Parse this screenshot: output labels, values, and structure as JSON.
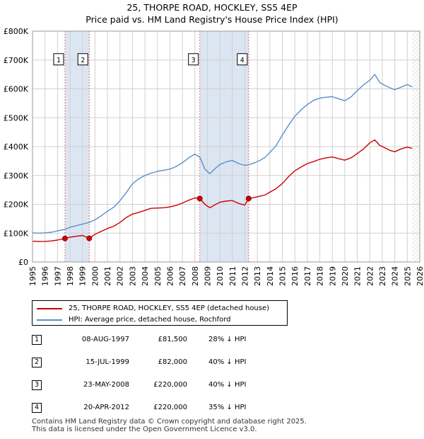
{
  "title_line1": "25, THORPE ROAD, HOCKLEY, SS5 4EP",
  "title_line2": "Price paid vs. HM Land Registry's House Price Index (HPI)",
  "colors": {
    "property": "#cc0000",
    "hpi": "#5b8fc9",
    "grid": "#d0d0d0",
    "shade": "#dce6f2",
    "sale_line": "#e07070"
  },
  "chart_data": {
    "type": "line",
    "xlabel": "",
    "ylabel": "",
    "xlim": [
      1995,
      2026
    ],
    "ylim": [
      0,
      800000
    ],
    "x_ticks": [
      1995,
      1996,
      1997,
      1998,
      1999,
      2000,
      2001,
      2002,
      2003,
      2004,
      2005,
      2006,
      2007,
      2008,
      2009,
      2010,
      2011,
      2012,
      2013,
      2014,
      2015,
      2016,
      2017,
      2018,
      2019,
      2020,
      2021,
      2022,
      2023,
      2024,
      2025,
      2026
    ],
    "y_ticks": [
      0,
      100000,
      200000,
      300000,
      400000,
      500000,
      600000,
      700000,
      800000
    ],
    "y_tick_labels": [
      "£0",
      "£100K",
      "£200K",
      "£300K",
      "£400K",
      "£500K",
      "£600K",
      "£700K",
      "£800K"
    ],
    "series": [
      {
        "name": "25, THORPE ROAD, HOCKLEY, SS5 4EP (detached house)",
        "color": "#cc0000",
        "x": [
          1995.0,
          1995.5,
          1996.0,
          1996.5,
          1997.0,
          1997.6,
          1998.0,
          1998.5,
          1999.0,
          1999.54,
          2000.0,
          2000.5,
          2001.0,
          2001.5,
          2002.0,
          2002.5,
          2003.0,
          2003.5,
          2004.0,
          2004.5,
          2005.0,
          2005.5,
          2006.0,
          2006.5,
          2007.0,
          2007.5,
          2008.0,
          2008.39,
          2008.8,
          2009.2,
          2009.6,
          2010.0,
          2010.5,
          2011.0,
          2011.5,
          2012.0,
          2012.3,
          2012.8,
          2013.2,
          2013.6,
          2014.0,
          2014.5,
          2015.0,
          2015.5,
          2016.0,
          2016.5,
          2017.0,
          2017.5,
          2018.0,
          2018.5,
          2019.0,
          2019.5,
          2020.0,
          2020.5,
          2021.0,
          2021.5,
          2022.0,
          2022.4,
          2022.8,
          2023.2,
          2023.6,
          2024.0,
          2024.5,
          2025.0,
          2025.4
        ],
        "values": [
          72000,
          71000,
          71500,
          73000,
          76000,
          81500,
          86000,
          89000,
          92000,
          82000,
          96000,
          106000,
          116000,
          124000,
          137000,
          154000,
          166000,
          172000,
          179000,
          186000,
          187000,
          188000,
          191000,
          196000,
          204000,
          214000,
          222000,
          220000,
          200000,
          188000,
          198000,
          207000,
          211000,
          213000,
          203000,
          197000,
          220000,
          224000,
          228000,
          232000,
          242000,
          254000,
          272000,
          296000,
          316000,
          329000,
          341000,
          348000,
          356000,
          361000,
          364000,
          358000,
          353000,
          361000,
          376000,
          392000,
          413000,
          423000,
          404000,
          396000,
          387000,
          382000,
          392000,
          398000,
          394000
        ]
      },
      {
        "name": "HPI: Average price, detached house, Rochford",
        "color": "#5b8fc9",
        "x": [
          1995.0,
          1995.5,
          1996.0,
          1996.5,
          1997.0,
          1997.6,
          1998.0,
          1998.5,
          1999.0,
          1999.5,
          2000.0,
          2000.5,
          2001.0,
          2001.5,
          2002.0,
          2002.5,
          2003.0,
          2003.5,
          2004.0,
          2004.5,
          2005.0,
          2005.5,
          2006.0,
          2006.5,
          2007.0,
          2007.5,
          2008.0,
          2008.4,
          2008.8,
          2009.2,
          2009.6,
          2010.0,
          2010.5,
          2011.0,
          2011.5,
          2012.0,
          2012.3,
          2012.8,
          2013.2,
          2013.6,
          2014.0,
          2014.5,
          2015.0,
          2015.5,
          2016.0,
          2016.5,
          2017.0,
          2017.5,
          2018.0,
          2018.5,
          2019.0,
          2019.5,
          2020.0,
          2020.5,
          2021.0,
          2021.5,
          2022.0,
          2022.4,
          2022.8,
          2023.2,
          2023.6,
          2024.0,
          2024.5,
          2025.0,
          2025.4
        ],
        "values": [
          101000,
          100000,
          101000,
          103000,
          108000,
          113000,
          120000,
          126000,
          131000,
          137000,
          146000,
          160000,
          176000,
          190000,
          212000,
          240000,
          271000,
          288000,
          300000,
          308000,
          314000,
          318000,
          322000,
          331000,
          344000,
          361000,
          374000,
          363000,
          322000,
          306000,
          323000,
          338000,
          347000,
          352000,
          341000,
          335000,
          337000,
          344000,
          352000,
          362000,
          380000,
          403000,
          440000,
          474000,
          505000,
          527000,
          546000,
          560000,
          568000,
          571000,
          573000,
          566000,
          559000,
          572000,
          594000,
          614000,
          630000,
          650000,
          622000,
          612000,
          604000,
          597000,
          606000,
          615000,
          607000
        ]
      }
    ],
    "sales": [
      {
        "label": "1",
        "x": 1997.6,
        "value": 81500
      },
      {
        "label": "2",
        "x": 1999.54,
        "value": 82000
      },
      {
        "label": "3",
        "x": 2008.39,
        "value": 220000
      },
      {
        "label": "4",
        "x": 2012.3,
        "value": 220000
      }
    ],
    "shaded_ranges": [
      [
        1997.6,
        1999.54
      ],
      [
        2008.39,
        2012.3
      ]
    ],
    "hatch_from": 2025.4
  },
  "legend": {
    "property": "25, THORPE ROAD, HOCKLEY, SS5 4EP (detached house)",
    "hpi": "HPI: Average price, detached house, Rochford"
  },
  "sales_table": [
    {
      "num": "1",
      "date": "08-AUG-1997",
      "price": "£81,500",
      "hpi": "28% ↓ HPI"
    },
    {
      "num": "2",
      "date": "15-JUL-1999",
      "price": "£82,000",
      "hpi": "40% ↓ HPI"
    },
    {
      "num": "3",
      "date": "23-MAY-2008",
      "price": "£220,000",
      "hpi": "40% ↓ HPI"
    },
    {
      "num": "4",
      "date": "20-APR-2012",
      "price": "£220,000",
      "hpi": "35% ↓ HPI"
    }
  ],
  "footer_line1": "Contains HM Land Registry data © Crown copyright and database right 2025.",
  "footer_line2": "This data is licensed under the Open Government Licence v3.0."
}
